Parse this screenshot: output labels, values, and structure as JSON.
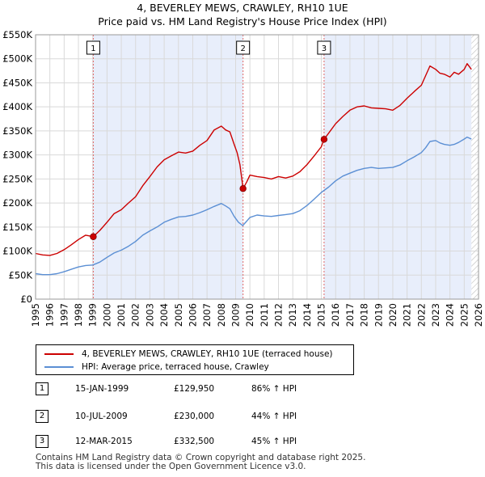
{
  "header": {
    "title_line1": "4, BEVERLEY MEWS, CRAWLEY, RH10 1UE",
    "title_line2": "Price paid vs. HM Land Registry's House Price Index (HPI)"
  },
  "chart_data": {
    "type": "line",
    "title": "4, BEVERLEY MEWS, CRAWLEY, RH10 1UE — Price paid vs. HM Land Registry's House Price Index (HPI)",
    "xlabel": "",
    "ylabel": "",
    "xlim": [
      1995,
      2026
    ],
    "ylim": [
      0,
      550000
    ],
    "grid": true,
    "y_ticks": [
      {
        "value": 0,
        "label": "£0"
      },
      {
        "value": 50000,
        "label": "£50K"
      },
      {
        "value": 100000,
        "label": "£100K"
      },
      {
        "value": 150000,
        "label": "£150K"
      },
      {
        "value": 200000,
        "label": "£200K"
      },
      {
        "value": 250000,
        "label": "£250K"
      },
      {
        "value": 300000,
        "label": "£300K"
      },
      {
        "value": 350000,
        "label": "£350K"
      },
      {
        "value": 400000,
        "label": "£400K"
      },
      {
        "value": 450000,
        "label": "£450K"
      },
      {
        "value": 500000,
        "label": "£500K"
      },
      {
        "value": 550000,
        "label": "£550K"
      }
    ],
    "x_ticks": [
      "1995",
      "1996",
      "1997",
      "1998",
      "1999",
      "2000",
      "2001",
      "2002",
      "2003",
      "2004",
      "2005",
      "2006",
      "2007",
      "2008",
      "2009",
      "2010",
      "2011",
      "2012",
      "2013",
      "2014",
      "2015",
      "2016",
      "2017",
      "2018",
      "2019",
      "2020",
      "2021",
      "2022",
      "2023",
      "2024",
      "2025",
      "2026"
    ],
    "shaded_ranges": [
      [
        1999.04,
        2009.52
      ],
      [
        2015.19,
        2025.5
      ]
    ],
    "hatched_from": 2025.5,
    "series": [
      {
        "name": "4, BEVERLEY MEWS, CRAWLEY, RH10 1UE (terraced house)",
        "color": "#cc0000",
        "x": [
          1995.0,
          1995.5,
          1996.0,
          1996.5,
          1997.0,
          1997.5,
          1998.0,
          1998.5,
          1999.04,
          1999.5,
          2000.0,
          2000.5,
          2001.0,
          2001.5,
          2002.0,
          2002.5,
          2003.0,
          2003.5,
          2004.0,
          2004.5,
          2005.0,
          2005.5,
          2006.0,
          2006.5,
          2007.0,
          2007.5,
          2008.0,
          2008.3,
          2008.6,
          2008.9,
          2009.1,
          2009.3,
          2009.52,
          2009.8,
          2010.0,
          2010.5,
          2011.0,
          2011.5,
          2012.0,
          2012.5,
          2013.0,
          2013.5,
          2014.0,
          2014.5,
          2015.0,
          2015.19,
          2015.5,
          2016.0,
          2016.5,
          2017.0,
          2017.5,
          2018.0,
          2018.5,
          2019.0,
          2019.5,
          2020.0,
          2020.5,
          2021.0,
          2021.5,
          2022.0,
          2022.3,
          2022.6,
          2023.0,
          2023.3,
          2023.6,
          2024.0,
          2024.3,
          2024.6,
          2025.0,
          2025.2,
          2025.5
        ],
        "y": [
          95000,
          92000,
          91000,
          95000,
          103000,
          113000,
          124000,
          133000,
          129950,
          143000,
          160000,
          178000,
          186000,
          200000,
          213000,
          236000,
          255000,
          275000,
          290000,
          298000,
          306000,
          304000,
          308000,
          320000,
          330000,
          352000,
          360000,
          352000,
          348000,
          322000,
          305000,
          280000,
          230000,
          245000,
          258000,
          255000,
          253000,
          250000,
          255000,
          252000,
          256000,
          265000,
          280000,
          298000,
          317000,
          332500,
          345000,
          365000,
          380000,
          393000,
          400000,
          402000,
          398000,
          397000,
          396000,
          393000,
          403000,
          418000,
          432000,
          445000,
          465000,
          485000,
          478000,
          470000,
          468000,
          462000,
          472000,
          468000,
          478000,
          490000,
          478000
        ]
      },
      {
        "name": "HPI: Average price, terraced house, Crawley",
        "color": "#5b8fd4",
        "x": [
          1995.0,
          1995.5,
          1996.0,
          1996.5,
          1997.0,
          1997.5,
          1998.0,
          1998.5,
          1999.0,
          1999.5,
          2000.0,
          2000.5,
          2001.0,
          2001.5,
          2002.0,
          2002.5,
          2003.0,
          2003.5,
          2004.0,
          2004.5,
          2005.0,
          2005.5,
          2006.0,
          2006.5,
          2007.0,
          2007.5,
          2008.0,
          2008.3,
          2008.6,
          2008.9,
          2009.2,
          2009.5,
          2009.8,
          2010.0,
          2010.5,
          2011.0,
          2011.5,
          2012.0,
          2012.5,
          2013.0,
          2013.5,
          2014.0,
          2014.5,
          2015.0,
          2015.5,
          2016.0,
          2016.5,
          2017.0,
          2017.5,
          2018.0,
          2018.5,
          2019.0,
          2019.5,
          2020.0,
          2020.5,
          2021.0,
          2021.5,
          2022.0,
          2022.3,
          2022.6,
          2023.0,
          2023.3,
          2023.6,
          2024.0,
          2024.3,
          2024.6,
          2025.0,
          2025.2,
          2025.5
        ],
        "y": [
          53000,
          51000,
          51000,
          53000,
          57000,
          62000,
          67000,
          70000,
          71000,
          77000,
          87000,
          96000,
          102000,
          110000,
          120000,
          133000,
          142000,
          150000,
          160000,
          166000,
          171000,
          172000,
          175000,
          180000,
          186000,
          193000,
          199000,
          194000,
          188000,
          172000,
          160000,
          153000,
          163000,
          170000,
          175000,
          173000,
          172000,
          174000,
          176000,
          178000,
          184000,
          195000,
          208000,
          222000,
          233000,
          246000,
          256000,
          262000,
          268000,
          272000,
          274000,
          272000,
          273000,
          274000,
          279000,
          288000,
          296000,
          305000,
          315000,
          328000,
          330000,
          325000,
          322000,
          320000,
          322000,
          326000,
          333000,
          337000,
          333000
        ]
      }
    ],
    "sale_points": [
      {
        "label": "1",
        "x": 1999.04,
        "y": 129950
      },
      {
        "label": "2",
        "x": 2009.52,
        "y": 230000
      },
      {
        "label": "3",
        "x": 2015.19,
        "y": 332500
      }
    ]
  },
  "legend": {
    "red_label": "4, BEVERLEY MEWS, CRAWLEY, RH10 1UE (terraced house)",
    "blue_label": "HPI: Average price, terraced house, Crawley",
    "red_color": "#cc0000",
    "blue_color": "#5b8fd4"
  },
  "sales": [
    {
      "num": "1",
      "date": "15-JAN-1999",
      "price": "£129,950",
      "hpi": "86% ↑ HPI"
    },
    {
      "num": "2",
      "date": "10-JUL-2009",
      "price": "£230,000",
      "hpi": "44% ↑ HPI"
    },
    {
      "num": "3",
      "date": "12-MAR-2015",
      "price": "£332,500",
      "hpi": "45% ↑ HPI"
    }
  ],
  "footer": {
    "line1": "Contains HM Land Registry data © Crown copyright and database right 2025.",
    "line2": "This data is licensed under the Open Government Licence v3.0."
  }
}
